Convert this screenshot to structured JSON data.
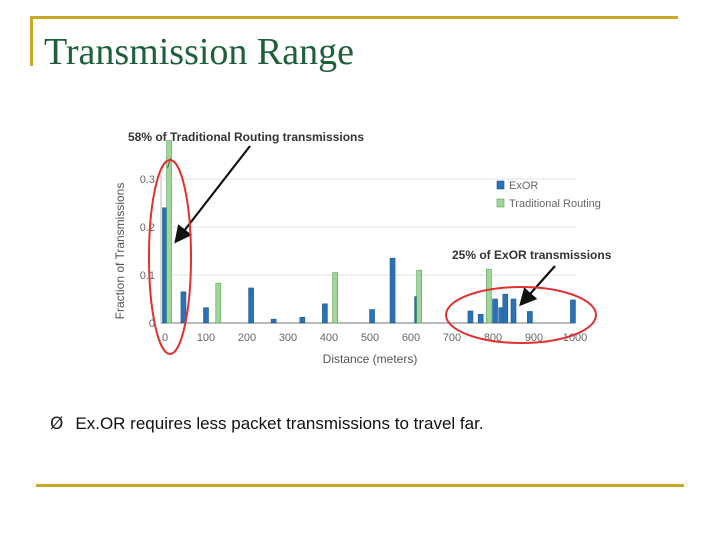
{
  "slide": {
    "title": "Transmission Range",
    "bullet_icon": "arrow-bullet-icon",
    "bullet_glyph": "Ø",
    "bullet_text": "Ex.OR requires less packet transmissions to travel far."
  },
  "colors": {
    "title": "#1f5f3a",
    "frame": "#c8a82a",
    "exor": "#2a72b5",
    "traditional": "#9fd79a",
    "traditional_edge": "#5a9e55",
    "circle": "#e03030"
  },
  "chart_data": {
    "type": "bar",
    "title": "",
    "xlabel": "Distance (meters)",
    "ylabel": "Fraction of Transmissions",
    "xlim": [
      0,
      1000
    ],
    "ylim": [
      0,
      0.4
    ],
    "x_ticks": [
      0,
      100,
      200,
      300,
      400,
      500,
      600,
      700,
      800,
      900,
      1000
    ],
    "y_ticks": [
      0,
      0.1,
      0.2,
      0.3
    ],
    "y_tick_labels": [
      "0",
      "0.1",
      "0.2",
      "0.3"
    ],
    "grid": true,
    "legend_position": "top-right",
    "series": [
      {
        "name": "ExOR",
        "x": [
          0,
          45,
          100,
          210,
          265,
          335,
          390,
          505,
          555,
          615,
          745,
          770,
          805,
          820,
          830,
          850,
          890,
          995
        ],
        "values": [
          0.24,
          0.065,
          0.032,
          0.073,
          0.008,
          0.012,
          0.04,
          0.028,
          0.135,
          0.055,
          0.025,
          0.018,
          0.05,
          0.032,
          0.06,
          0.05,
          0.024,
          0.048
        ]
      },
      {
        "name": "Traditional Routing",
        "x": [
          10,
          130,
          415,
          620,
          790
        ],
        "values": [
          0.38,
          0.083,
          0.105,
          0.11,
          0.112
        ]
      }
    ],
    "annotations": [
      "58% of Traditional Routing transmissions",
      "25% of ExOR transmissions"
    ]
  }
}
